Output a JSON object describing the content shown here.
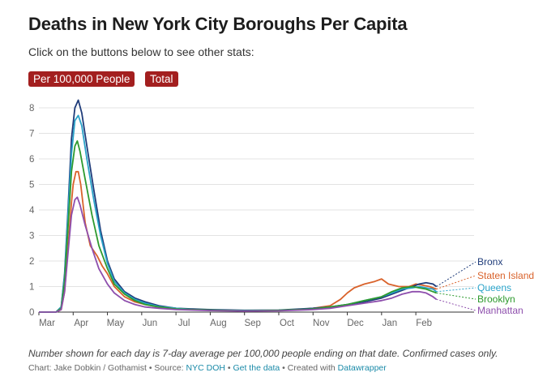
{
  "title": "Deaths in New York City Boroughs Per Capita",
  "subtitle": "Click on the buttons below to see other stats:",
  "buttons": [
    "Per 100,000 People",
    "Total"
  ],
  "note": "Number shown for each day is 7-day average per 100,000 people ending on that date. Confirmed cases only.",
  "footer": {
    "chart_by": "Chart: Jake Dobkin / Gothamist",
    "sep1": " • Source: ",
    "source": "NYC DOH",
    "sep2": " • ",
    "get_data": "Get the data",
    "sep3": " • Created with ",
    "created_with": "Datawrapper"
  },
  "chart_data": {
    "type": "line",
    "title": "Deaths in New York City Boroughs Per Capita",
    "ylabel": "",
    "xlabel": "",
    "ylim": [
      0,
      8
    ],
    "yticks": [
      0,
      1,
      2,
      3,
      4,
      5,
      6,
      7,
      8
    ],
    "xlim": [
      0,
      12.7
    ],
    "xticks": [
      {
        "x": 0,
        "label": "Mar"
      },
      {
        "x": 1,
        "label": "Apr"
      },
      {
        "x": 2,
        "label": "May"
      },
      {
        "x": 3,
        "label": "Jun"
      },
      {
        "x": 4,
        "label": "Jul"
      },
      {
        "x": 5,
        "label": "Aug"
      },
      {
        "x": 6,
        "label": "Sep"
      },
      {
        "x": 7,
        "label": "Oct"
      },
      {
        "x": 8,
        "label": "Nov"
      },
      {
        "x": 9,
        "label": "Dec"
      },
      {
        "x": 10,
        "label": "Jan"
      },
      {
        "x": 11,
        "label": "Feb"
      }
    ],
    "grid": true,
    "legend": "right-end labels",
    "series": [
      {
        "name": "Staten Island",
        "color": "#d9622b",
        "points": [
          [
            0,
            0
          ],
          [
            0.5,
            0
          ],
          [
            0.65,
            0.1
          ],
          [
            0.75,
            0.8
          ],
          [
            0.85,
            2.5
          ],
          [
            0.95,
            4.3
          ],
          [
            1.0,
            5.0
          ],
          [
            1.08,
            5.5
          ],
          [
            1.15,
            5.5
          ],
          [
            1.22,
            5.0
          ],
          [
            1.35,
            3.5
          ],
          [
            1.5,
            2.6
          ],
          [
            1.7,
            2.2
          ],
          [
            1.85,
            1.8
          ],
          [
            2.0,
            1.5
          ],
          [
            2.2,
            1.0
          ],
          [
            2.5,
            0.6
          ],
          [
            2.8,
            0.4
          ],
          [
            3.1,
            0.3
          ],
          [
            3.5,
            0.2
          ],
          [
            4.0,
            0.15
          ],
          [
            4.5,
            0.1
          ],
          [
            5.0,
            0.08
          ],
          [
            6.0,
            0.05
          ],
          [
            7.0,
            0.07
          ],
          [
            7.5,
            0.1
          ],
          [
            8.0,
            0.15
          ],
          [
            8.5,
            0.25
          ],
          [
            8.8,
            0.5
          ],
          [
            9.0,
            0.75
          ],
          [
            9.2,
            0.95
          ],
          [
            9.5,
            1.1
          ],
          [
            9.8,
            1.2
          ],
          [
            10.0,
            1.3
          ],
          [
            10.2,
            1.1
          ],
          [
            10.5,
            1.0
          ],
          [
            10.8,
            1.0
          ],
          [
            11.0,
            1.1
          ],
          [
            11.2,
            1.05
          ],
          [
            11.4,
            1.0
          ],
          [
            11.6,
            0.9
          ]
        ]
      },
      {
        "name": "Bronx",
        "color": "#1f3c7a",
        "points": [
          [
            0,
            0
          ],
          [
            0.5,
            0
          ],
          [
            0.65,
            0.2
          ],
          [
            0.75,
            1.5
          ],
          [
            0.85,
            4.0
          ],
          [
            0.95,
            6.8
          ],
          [
            1.05,
            8.0
          ],
          [
            1.15,
            8.3
          ],
          [
            1.25,
            7.8
          ],
          [
            1.4,
            6.5
          ],
          [
            1.6,
            4.8
          ],
          [
            1.8,
            3.2
          ],
          [
            2.0,
            2.0
          ],
          [
            2.2,
            1.3
          ],
          [
            2.5,
            0.8
          ],
          [
            2.8,
            0.55
          ],
          [
            3.1,
            0.4
          ],
          [
            3.5,
            0.25
          ],
          [
            4.0,
            0.15
          ],
          [
            4.5,
            0.12
          ],
          [
            5.0,
            0.1
          ],
          [
            6.0,
            0.07
          ],
          [
            7.0,
            0.08
          ],
          [
            8.0,
            0.15
          ],
          [
            8.5,
            0.2
          ],
          [
            9.0,
            0.3
          ],
          [
            9.5,
            0.4
          ],
          [
            10.0,
            0.55
          ],
          [
            10.3,
            0.7
          ],
          [
            10.6,
            0.85
          ],
          [
            10.9,
            1.0
          ],
          [
            11.1,
            1.1
          ],
          [
            11.3,
            1.15
          ],
          [
            11.5,
            1.1
          ],
          [
            11.6,
            1.0
          ]
        ]
      },
      {
        "name": "Queens",
        "color": "#2aa3c9",
        "points": [
          [
            0,
            0
          ],
          [
            0.5,
            0
          ],
          [
            0.65,
            0.2
          ],
          [
            0.75,
            1.4
          ],
          [
            0.85,
            3.8
          ],
          [
            0.95,
            6.2
          ],
          [
            1.05,
            7.5
          ],
          [
            1.15,
            7.7
          ],
          [
            1.25,
            7.3
          ],
          [
            1.4,
            6.0
          ],
          [
            1.6,
            4.4
          ],
          [
            1.8,
            3.0
          ],
          [
            2.0,
            1.9
          ],
          [
            2.2,
            1.2
          ],
          [
            2.5,
            0.75
          ],
          [
            2.8,
            0.5
          ],
          [
            3.1,
            0.35
          ],
          [
            3.5,
            0.22
          ],
          [
            4.0,
            0.15
          ],
          [
            4.5,
            0.1
          ],
          [
            5.0,
            0.08
          ],
          [
            6.0,
            0.06
          ],
          [
            7.0,
            0.07
          ],
          [
            8.0,
            0.12
          ],
          [
            8.5,
            0.2
          ],
          [
            9.0,
            0.3
          ],
          [
            9.5,
            0.45
          ],
          [
            10.0,
            0.6
          ],
          [
            10.3,
            0.75
          ],
          [
            10.6,
            0.9
          ],
          [
            10.9,
            0.95
          ],
          [
            11.1,
            1.0
          ],
          [
            11.3,
            0.95
          ],
          [
            11.5,
            0.9
          ],
          [
            11.6,
            0.8
          ]
        ]
      },
      {
        "name": "Brooklyn",
        "color": "#2e9a2e",
        "points": [
          [
            0,
            0
          ],
          [
            0.5,
            0
          ],
          [
            0.65,
            0.15
          ],
          [
            0.75,
            1.2
          ],
          [
            0.85,
            3.3
          ],
          [
            0.95,
            5.5
          ],
          [
            1.05,
            6.5
          ],
          [
            1.12,
            6.7
          ],
          [
            1.2,
            6.3
          ],
          [
            1.35,
            5.2
          ],
          [
            1.55,
            3.8
          ],
          [
            1.75,
            2.6
          ],
          [
            2.0,
            1.7
          ],
          [
            2.2,
            1.1
          ],
          [
            2.5,
            0.7
          ],
          [
            2.8,
            0.45
          ],
          [
            3.1,
            0.3
          ],
          [
            3.5,
            0.2
          ],
          [
            4.0,
            0.12
          ],
          [
            4.5,
            0.1
          ],
          [
            5.0,
            0.08
          ],
          [
            6.0,
            0.05
          ],
          [
            7.0,
            0.07
          ],
          [
            8.0,
            0.12
          ],
          [
            8.5,
            0.2
          ],
          [
            9.0,
            0.3
          ],
          [
            9.5,
            0.45
          ],
          [
            10.0,
            0.6
          ],
          [
            10.3,
            0.8
          ],
          [
            10.6,
            0.95
          ],
          [
            10.9,
            1.0
          ],
          [
            11.1,
            0.95
          ],
          [
            11.3,
            0.9
          ],
          [
            11.5,
            0.8
          ],
          [
            11.6,
            0.75
          ]
        ]
      },
      {
        "name": "Manhattan",
        "color": "#8e4fad",
        "points": [
          [
            0,
            0
          ],
          [
            0.5,
            0
          ],
          [
            0.65,
            0.1
          ],
          [
            0.75,
            0.8
          ],
          [
            0.85,
            2.3
          ],
          [
            0.95,
            3.8
          ],
          [
            1.05,
            4.4
          ],
          [
            1.12,
            4.5
          ],
          [
            1.2,
            4.2
          ],
          [
            1.35,
            3.4
          ],
          [
            1.55,
            2.5
          ],
          [
            1.75,
            1.7
          ],
          [
            2.0,
            1.1
          ],
          [
            2.2,
            0.75
          ],
          [
            2.5,
            0.45
          ],
          [
            2.8,
            0.3
          ],
          [
            3.1,
            0.2
          ],
          [
            3.5,
            0.15
          ],
          [
            4.0,
            0.1
          ],
          [
            4.5,
            0.08
          ],
          [
            5.0,
            0.06
          ],
          [
            6.0,
            0.04
          ],
          [
            7.0,
            0.05
          ],
          [
            8.0,
            0.1
          ],
          [
            8.5,
            0.15
          ],
          [
            9.0,
            0.25
          ],
          [
            9.5,
            0.35
          ],
          [
            10.0,
            0.45
          ],
          [
            10.3,
            0.55
          ],
          [
            10.6,
            0.7
          ],
          [
            10.9,
            0.8
          ],
          [
            11.1,
            0.8
          ],
          [
            11.3,
            0.75
          ],
          [
            11.5,
            0.6
          ],
          [
            11.6,
            0.5
          ]
        ]
      }
    ],
    "end_labels": [
      "Bronx",
      "Staten Island",
      "Queens",
      "Brooklyn",
      "Manhattan"
    ]
  }
}
